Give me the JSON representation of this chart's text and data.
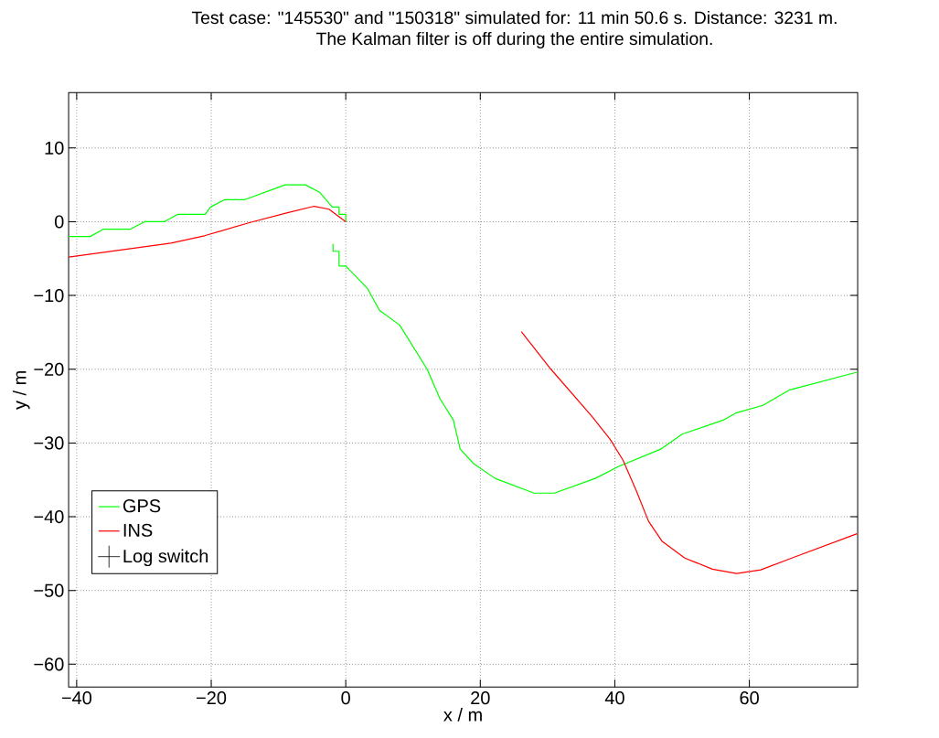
{
  "chart_data": {
    "type": "line",
    "title": "Test case: \"145530\" and \"150318\" simulated for: 11 min 50.6 s. Distance: 3231 m.",
    "subtitle": "The Kalman filter is off during the entire simulation.",
    "xlabel": "x / m",
    "ylabel": "y / m",
    "xlim": [
      -41.2,
      76.1
    ],
    "ylim": [
      -63.1,
      17.5
    ],
    "xticks": [
      {
        "value": -40,
        "label": "−40"
      },
      {
        "value": -20,
        "label": "−20"
      },
      0,
      20,
      40,
      60
    ],
    "yticks": [
      {
        "value": -60,
        "label": "−60"
      },
      {
        "value": -50,
        "label": "−50"
      },
      {
        "value": -40,
        "label": "−40"
      },
      {
        "value": -30,
        "label": "−30"
      },
      {
        "value": -20,
        "label": "−20"
      },
      {
        "value": -10,
        "label": "−10"
      },
      0,
      10
    ],
    "grid": true,
    "legend": "bottom left",
    "line_style": "solid",
    "marker": "none",
    "series": [
      {
        "name": "GPS",
        "color": "#00ff00",
        "x": [
          -41.2,
          -38,
          -36,
          -32,
          -29.9,
          -27,
          -25,
          -20.9,
          -20.1,
          -18,
          -15,
          -9,
          -6,
          -3.9,
          -2,
          -1,
          -1,
          0,
          0,
          null,
          -1.9,
          -1.9,
          -1,
          -1,
          0,
          3.2,
          5,
          8,
          12.1,
          14,
          16,
          17,
          19,
          22.2,
          28,
          31,
          37.1,
          40.5,
          46.9,
          50,
          56.1,
          58.1,
          62,
          66,
          76
        ],
        "values": [
          -2,
          -2,
          -1,
          -1,
          0,
          0,
          1,
          1,
          2,
          3,
          3,
          5,
          5,
          4,
          2,
          2,
          1,
          1,
          0,
          null,
          -3,
          -4,
          -4,
          -6,
          -6,
          -9,
          -12,
          -14,
          -20,
          -24,
          -26.9,
          -30.8,
          -32.8,
          -34.8,
          -36.8,
          -36.8,
          -34.8,
          -33.2,
          -30.8,
          -28.8,
          -26.9,
          -25.9,
          -24.9,
          -22.8,
          -20.4
        ]
      },
      {
        "name": "INS",
        "color": "#ff0000",
        "x": [
          -41.2,
          -26,
          -21,
          -14.2,
          -8.8,
          -4.7,
          -2.5,
          0,
          null,
          26.1,
          30.5,
          36.6,
          39.3,
          41.2,
          43.2,
          45,
          47,
          50.4,
          54.5,
          58.1,
          61.7,
          66.3,
          76
        ],
        "values": [
          -4.8,
          -2.9,
          -1.9,
          -0.1,
          1.2,
          2.1,
          1.7,
          0,
          null,
          -14.9,
          -20,
          -26.4,
          -29.5,
          -32.3,
          -36.5,
          -40.6,
          -43.3,
          -45.6,
          -47.1,
          -47.7,
          -47.2,
          -45.6,
          -42.3
        ]
      },
      {
        "name": "Log switch",
        "type": "scatter",
        "color": "#000000",
        "marker": "cross"
      }
    ]
  }
}
